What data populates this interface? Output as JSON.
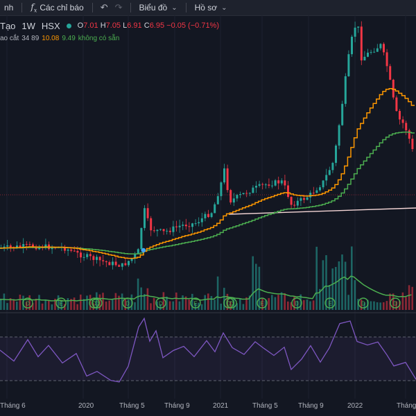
{
  "toolbar": {
    "cut_label": "nh",
    "indicators_label": "Các chỉ báo",
    "chart_label": "Biểu đồ",
    "profile_label": "Hồ sơ"
  },
  "symbol": {
    "name": "Tạo",
    "interval": "1W",
    "exchange": "HSX",
    "open_prefix": "O",
    "open": "7.01",
    "high_prefix": "H",
    "high": "7.05",
    "low_prefix": "L",
    "low": "6.91",
    "close_prefix": "C",
    "close": "6.95",
    "change": "−0.05 (−0.71%)",
    "colors": {
      "down": "#f23645",
      "up": "#26a69a"
    }
  },
  "indicator": {
    "name": "ao cắt",
    "params": "34 89",
    "v1": "10.08",
    "v2": "9.49",
    "v3": "không có sẵn",
    "colors": {
      "fast": "#ff9800",
      "slow": "#4caf50"
    }
  },
  "x_axis": {
    "labels": [
      "Tháng 6",
      "2020",
      "Tháng 5",
      "Tháng 9",
      "2021",
      "Tháng 5",
      "Tháng 9",
      "2022",
      "Tháng"
    ]
  },
  "event_marker_letters": [
    "D",
    "E",
    "D",
    "D",
    "D",
    "D",
    "E",
    "D",
    "D",
    "E",
    "D",
    "E",
    "D"
  ],
  "rsi": {
    "color": "#7e57c2"
  }
}
